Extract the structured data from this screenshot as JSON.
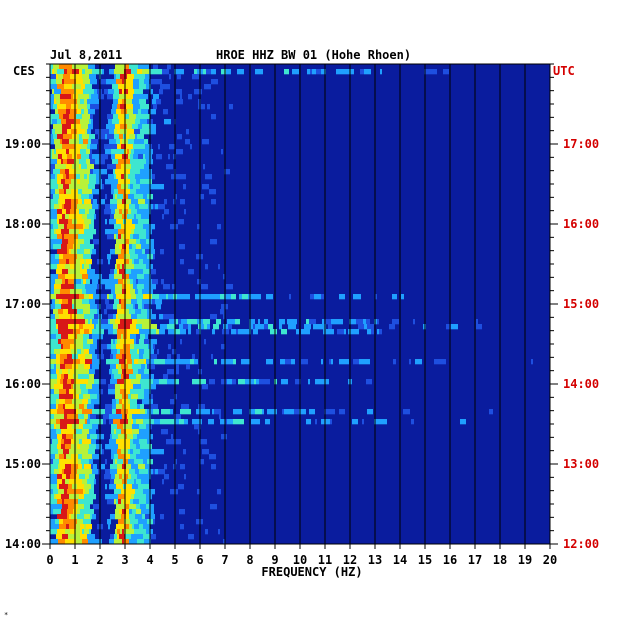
{
  "header": {
    "date": "Jul 8,2011",
    "station": "HROE HHZ BW 01 (Hohe Rhoen)"
  },
  "timezones": {
    "left": "CES",
    "right": "UTC"
  },
  "corner_mark": "*",
  "colors": {
    "background_spectrum": "#0a1c9e",
    "grid": "#000000",
    "right_axis": "#d40000",
    "left_axis": "#000000"
  },
  "chart_data": {
    "type": "heatmap",
    "title": "HROE HHZ BW 01 (Hohe Rhoen)",
    "date": "Jul 8,2011",
    "xlabel": "FREQUENCY (HZ)",
    "ylabel": "",
    "xlim": [
      0,
      20
    ],
    "x_ticks": [
      0,
      1,
      2,
      3,
      4,
      5,
      6,
      7,
      8,
      9,
      10,
      11,
      12,
      13,
      14,
      15,
      16,
      17,
      18,
      19,
      20
    ],
    "y_ticks_left": [
      {
        "hour": 14,
        "label": "14:00"
      },
      {
        "hour": 15,
        "label": "15:00"
      },
      {
        "hour": 16,
        "label": "16:00"
      },
      {
        "hour": 17,
        "label": "17:00"
      },
      {
        "hour": 18,
        "label": "18:00"
      },
      {
        "hour": 19,
        "label": "19:00"
      }
    ],
    "y_ticks_right": [
      {
        "hour": 14,
        "label": "12:00"
      },
      {
        "hour": 15,
        "label": "13:00"
      },
      {
        "hour": 16,
        "label": "14:00"
      },
      {
        "hour": 17,
        "label": "15:00"
      },
      {
        "hour": 18,
        "label": "16:00"
      },
      {
        "hour": 19,
        "label": "17:00"
      }
    ],
    "ylim_local_hours": [
      14.0,
      20.0
    ],
    "colormap": [
      "#0a1c9e",
      "#1e4fe0",
      "#1fa0ff",
      "#3ee6d0",
      "#b8f23a",
      "#ffe000",
      "#ff8a00",
      "#d81818"
    ],
    "energy_bands": [
      {
        "freq_center": 0.55,
        "width": 0.45,
        "intensity": 0.9
      },
      {
        "freq_center": 1.3,
        "width": 0.35,
        "intensity": 0.45
      },
      {
        "freq_center": 2.85,
        "width": 0.35,
        "intensity": 0.85
      },
      {
        "freq_center": 3.6,
        "width": 0.4,
        "intensity": 0.3
      }
    ],
    "grid": true
  }
}
